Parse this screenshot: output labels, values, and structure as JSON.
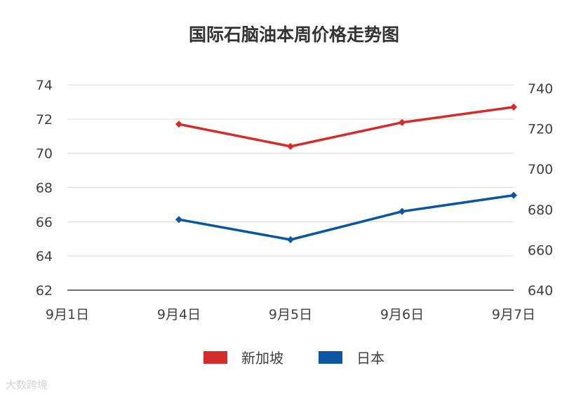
{
  "chart_data": {
    "type": "line",
    "title": "国际石脑油本周价格走势图",
    "categories": [
      "9月1日",
      "9月4日",
      "9月5日",
      "9月6日",
      "9月7日"
    ],
    "y_left": {
      "ylim": [
        62,
        74
      ],
      "ticks": [
        "62",
        "64",
        "66",
        "68",
        "70",
        "72",
        "74"
      ]
    },
    "y_right": {
      "ylim": [
        640,
        740
      ],
      "ticks": [
        "640",
        "660",
        "680",
        "700",
        "720",
        "740"
      ]
    },
    "series": [
      {
        "name": "新加坡",
        "axis": "left",
        "color": "#d62b2b",
        "values": [
          null,
          71.7,
          70.4,
          71.8,
          72.7
        ]
      },
      {
        "name": "日本",
        "axis": "right",
        "color": "#0a56a3",
        "values": [
          null,
          675,
          665,
          679,
          687
        ]
      }
    ],
    "legend": "bottom",
    "grid": true
  },
  "watermark": "大数跨境"
}
